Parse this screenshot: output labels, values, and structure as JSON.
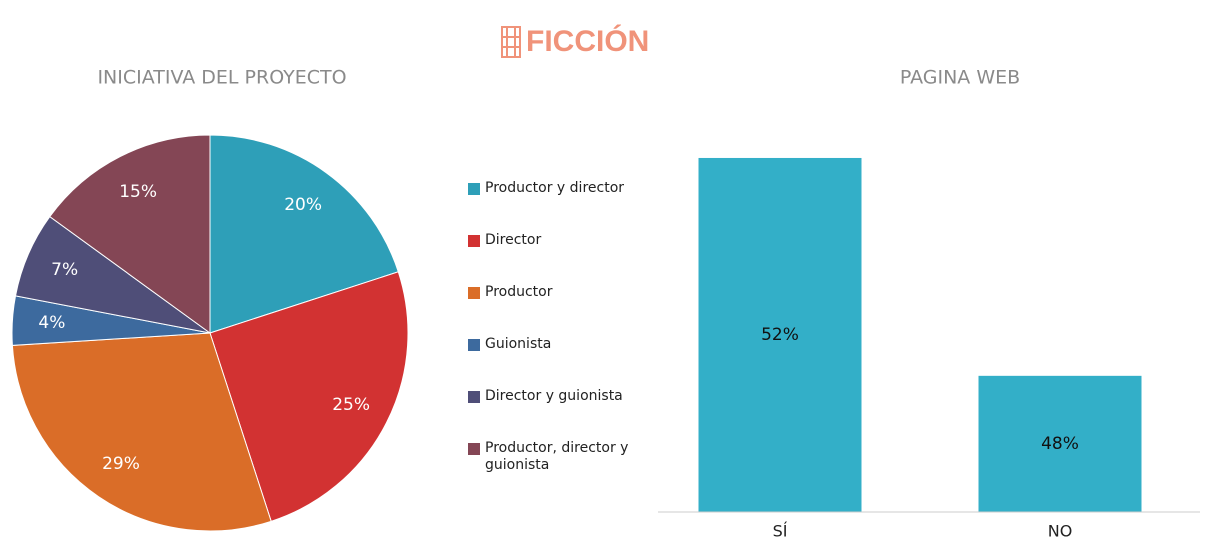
{
  "header": {
    "title": "FICCIÓN"
  },
  "chart_data": [
    {
      "type": "pie",
      "title": "INICIATIVA DEL PROYECTO",
      "categories": [
        "Productor y director",
        "Director",
        "Productor",
        "Guionista",
        "Director y guionista",
        "Productor, director y guionista"
      ],
      "values": [
        20,
        25,
        29,
        4,
        7,
        15
      ],
      "value_labels": [
        "20%",
        "25%",
        "29%",
        "4%",
        "7%",
        "15%"
      ],
      "colors": [
        "#2e9fb8",
        "#d23232",
        "#da6d28",
        "#3d6a9e",
        "#4f4e78",
        "#844655"
      ]
    },
    {
      "type": "bar",
      "title": "PAGINA WEB",
      "categories": [
        "SÍ",
        "NO"
      ],
      "values": [
        52,
        48
      ],
      "value_labels": [
        "52%",
        "48%"
      ],
      "color": "#33afc8",
      "ylim": [
        45.5,
        53
      ]
    }
  ]
}
